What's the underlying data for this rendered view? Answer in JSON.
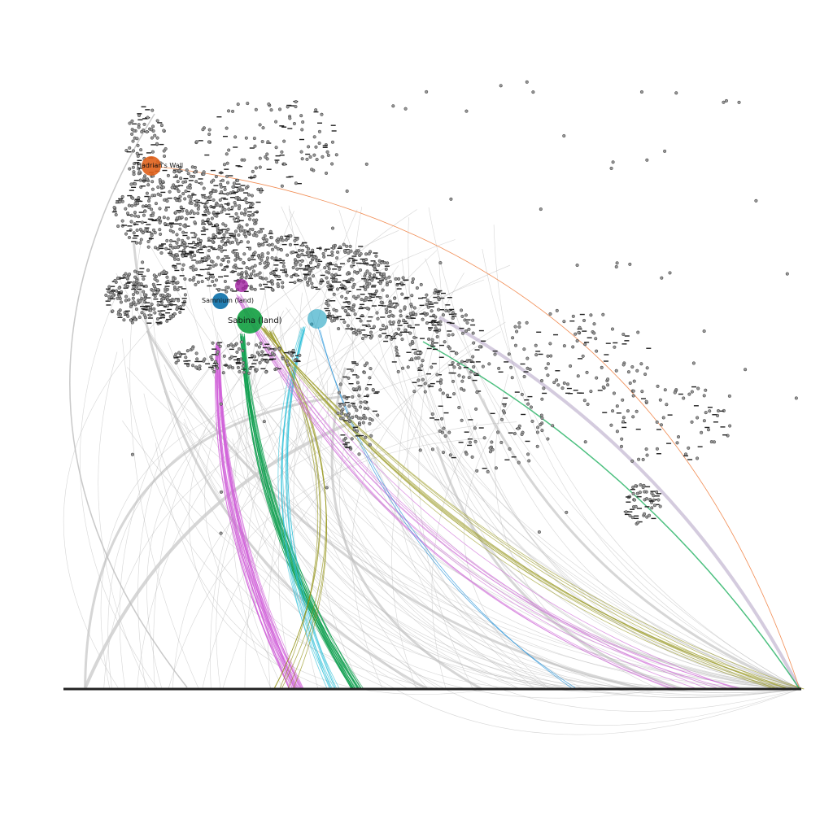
{
  "nodes": [
    {
      "label": "Hadrian's Wall"
    },
    {
      "label": "Samnium (land)"
    },
    {
      "label": "Sabina (land)"
    }
  ]
}
